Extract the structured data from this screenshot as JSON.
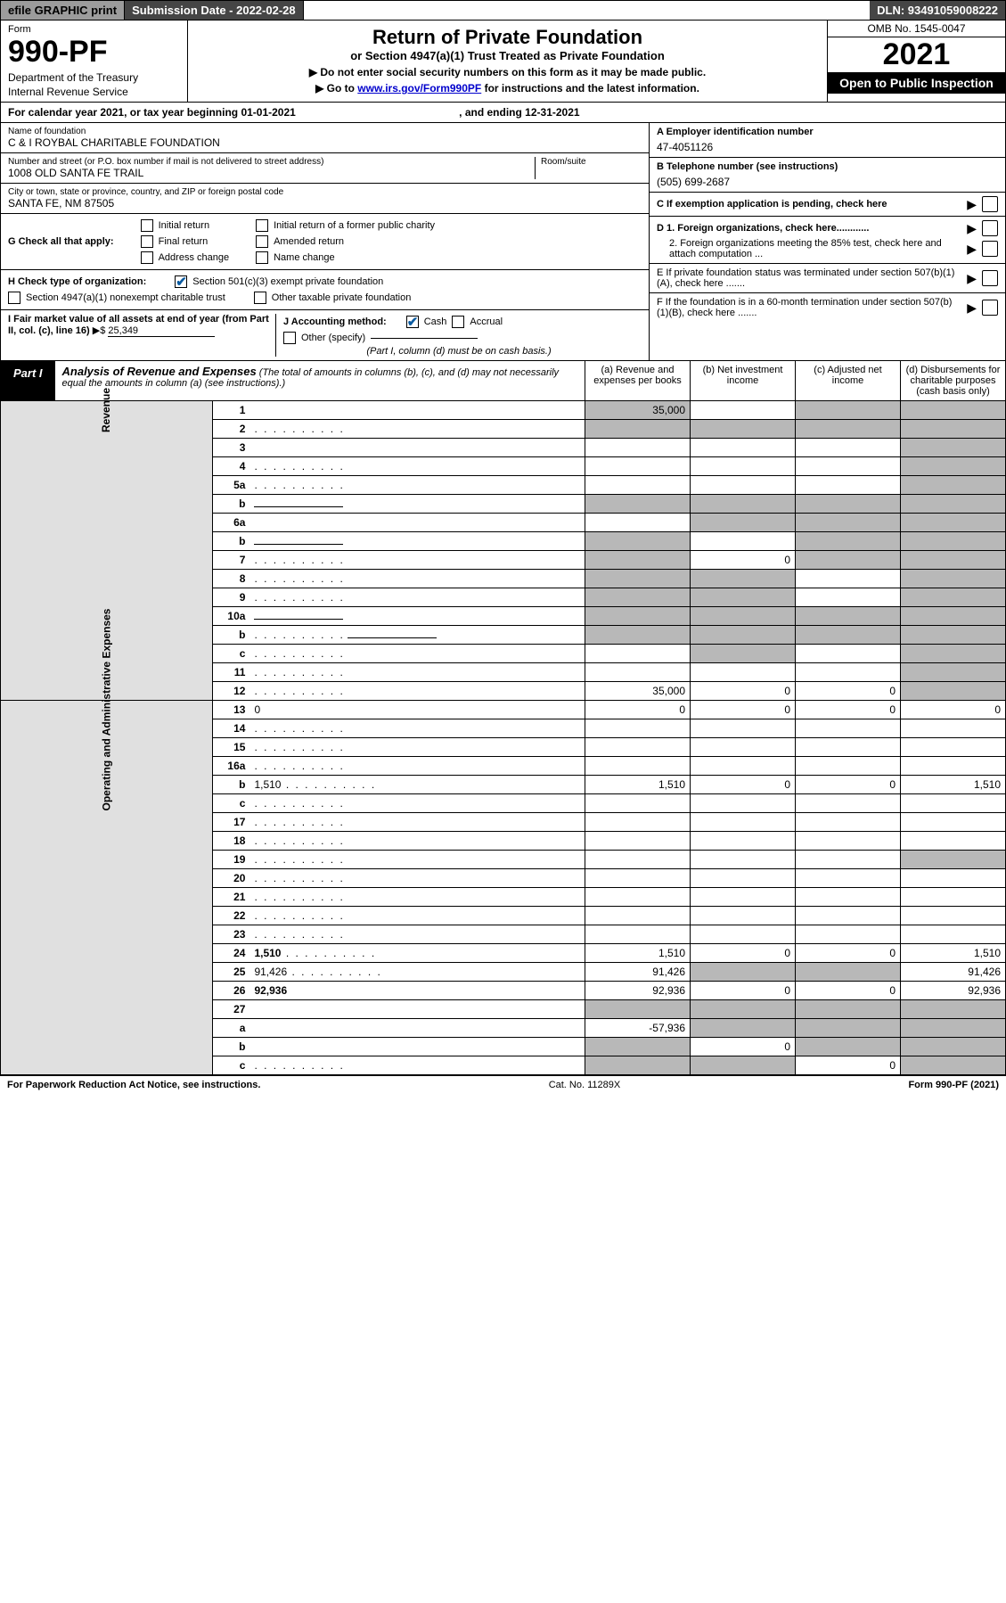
{
  "topbar": {
    "efile": "efile GRAPHIC print",
    "subdate_label": "Submission Date - ",
    "subdate_value": "2022-02-28",
    "dln": "DLN: 93491059008222"
  },
  "header": {
    "form_label": "Form",
    "form_num": "990-PF",
    "dept": "Department of the Treasury",
    "irs": "Internal Revenue Service",
    "title": "Return of Private Foundation",
    "subtitle": "or Section 4947(a)(1) Trust Treated as Private Foundation",
    "inst1": "▶ Do not enter social security numbers on this form as it may be made public.",
    "inst2_pre": "▶ Go to ",
    "inst2_link": "www.irs.gov/Form990PF",
    "inst2_post": " for instructions and the latest information.",
    "omb": "OMB No. 1545-0047",
    "year": "2021",
    "open": "Open to Public Inspection"
  },
  "calyear": "For calendar year 2021, or tax year beginning 01-01-2021",
  "calyear_end": ", and ending 12-31-2021",
  "foundation": {
    "name_label": "Name of foundation",
    "name": "C & I ROYBAL CHARITABLE FOUNDATION",
    "addr_label": "Number and street (or P.O. box number if mail is not delivered to street address)",
    "addr": "1008 OLD SANTA FE TRAIL",
    "room_label": "Room/suite",
    "city_label": "City or town, state or province, country, and ZIP or foreign postal code",
    "city": "SANTA FE, NM  87505"
  },
  "right_info": {
    "a_label": "A Employer identification number",
    "a_val": "47-4051126",
    "b_label": "B Telephone number (see instructions)",
    "b_val": "(505) 699-2687",
    "c_label": "C If exemption application is pending, check here",
    "d1": "D 1. Foreign organizations, check here............",
    "d2": "2. Foreign organizations meeting the 85% test, check here and attach computation ...",
    "e": "E  If private foundation status was terminated under section 507(b)(1)(A), check here .......",
    "f": "F  If the foundation is in a 60-month termination under section 507(b)(1)(B), check here .......",
    "arrow": "▶"
  },
  "g": {
    "label": "G Check all that apply:",
    "opts": [
      "Initial return",
      "Final return",
      "Address change",
      "Initial return of a former public charity",
      "Amended return",
      "Name change"
    ]
  },
  "h": {
    "label": "H Check type of organization:",
    "o1": "Section 501(c)(3) exempt private foundation",
    "o2": "Section 4947(a)(1) nonexempt charitable trust",
    "o3": "Other taxable private foundation"
  },
  "i": {
    "label": "I Fair market value of all assets at end of year (from Part II, col. (c), line 16)",
    "val": "25,349",
    "arrow": "▶$"
  },
  "j": {
    "label": "J Accounting method:",
    "cash": "Cash",
    "accrual": "Accrual",
    "other": "Other (specify)",
    "note": "(Part I, column (d) must be on cash basis.)"
  },
  "part1_title": "Analysis of Revenue and Expenses",
  "part1_note": "(The total of amounts in columns (b), (c), and (d) may not necessarily equal the amounts in column (a) (see instructions).)",
  "cols": {
    "a": "(a)  Revenue and expenses per books",
    "b": "(b)  Net investment income",
    "c": "(c)  Adjusted net income",
    "d": "(d)  Disbursements for charitable purposes (cash basis only)"
  },
  "sides": {
    "rev": "Revenue",
    "exp": "Operating and Administrative Expenses"
  },
  "rows": [
    {
      "n": "1",
      "d": "",
      "a": "35,000",
      "b": "",
      "c": "",
      "sa": true,
      "sc": true,
      "sd": true
    },
    {
      "n": "2",
      "d": "",
      "a": "",
      "b": "",
      "c": "",
      "sa": true,
      "sb": true,
      "sc": true,
      "sd": true,
      "dots": true,
      "bold_not": true
    },
    {
      "n": "3",
      "d": "",
      "a": "",
      "b": "",
      "c": "",
      "sd": true
    },
    {
      "n": "4",
      "d": "",
      "a": "",
      "b": "",
      "c": "",
      "sd": true,
      "dots": true
    },
    {
      "n": "5a",
      "d": "",
      "a": "",
      "b": "",
      "c": "",
      "sd": true,
      "dots": true
    },
    {
      "n": "b",
      "d": "",
      "a": "",
      "b": "",
      "c": "",
      "sa": true,
      "sb": true,
      "sc": true,
      "sd": true,
      "inline": true
    },
    {
      "n": "6a",
      "d": "",
      "a": "",
      "b": "",
      "c": "",
      "sb": true,
      "sc": true,
      "sd": true
    },
    {
      "n": "b",
      "d": "",
      "a": "",
      "b": "",
      "c": "",
      "sa": true,
      "sc": true,
      "sd": true,
      "inline": true
    },
    {
      "n": "7",
      "d": "",
      "a": "",
      "b": "0",
      "c": "",
      "sa": true,
      "sc": true,
      "sd": true,
      "dots": true
    },
    {
      "n": "8",
      "d": "",
      "a": "",
      "b": "",
      "c": "",
      "sa": true,
      "sb": true,
      "sd": true,
      "dots": true
    },
    {
      "n": "9",
      "d": "",
      "a": "",
      "b": "",
      "c": "",
      "sa": true,
      "sb": true,
      "sd": true,
      "dots": true
    },
    {
      "n": "10a",
      "d": "",
      "a": "",
      "b": "",
      "c": "",
      "sa": true,
      "sb": true,
      "sc": true,
      "sd": true,
      "inline": true
    },
    {
      "n": "b",
      "d": "",
      "a": "",
      "b": "",
      "c": "",
      "sa": true,
      "sb": true,
      "sc": true,
      "sd": true,
      "dots": true,
      "inline": true
    },
    {
      "n": "c",
      "d": "",
      "a": "",
      "b": "",
      "c": "",
      "sb": true,
      "sd": true,
      "dots": true
    },
    {
      "n": "11",
      "d": "",
      "a": "",
      "b": "",
      "c": "",
      "sd": true,
      "dots": true
    },
    {
      "n": "12",
      "d": "",
      "a": "35,000",
      "b": "0",
      "c": "0",
      "sd": true,
      "bold": true,
      "dots": true
    }
  ],
  "exp_rows": [
    {
      "n": "13",
      "d": "0",
      "a": "0",
      "b": "0",
      "c": "0"
    },
    {
      "n": "14",
      "d": "",
      "a": "",
      "b": "",
      "c": "",
      "dots": true
    },
    {
      "n": "15",
      "d": "",
      "a": "",
      "b": "",
      "c": "",
      "dots": true
    },
    {
      "n": "16a",
      "d": "",
      "a": "",
      "b": "",
      "c": "",
      "dots": true
    },
    {
      "n": "b",
      "d": "1,510",
      "a": "1,510",
      "b": "0",
      "c": "0",
      "dots": true
    },
    {
      "n": "c",
      "d": "",
      "a": "",
      "b": "",
      "c": "",
      "dots": true
    },
    {
      "n": "17",
      "d": "",
      "a": "",
      "b": "",
      "c": "",
      "dots": true
    },
    {
      "n": "18",
      "d": "",
      "a": "",
      "b": "",
      "c": "",
      "dots": true
    },
    {
      "n": "19",
      "d": "",
      "a": "",
      "b": "",
      "c": "",
      "sd": true,
      "dots": true
    },
    {
      "n": "20",
      "d": "",
      "a": "",
      "b": "",
      "c": "",
      "dots": true
    },
    {
      "n": "21",
      "d": "",
      "a": "",
      "b": "",
      "c": "",
      "dots": true
    },
    {
      "n": "22",
      "d": "",
      "a": "",
      "b": "",
      "c": "",
      "dots": true
    },
    {
      "n": "23",
      "d": "",
      "a": "",
      "b": "",
      "c": "",
      "dots": true
    },
    {
      "n": "24",
      "d": "1,510",
      "a": "1,510",
      "b": "0",
      "c": "0",
      "bold": true,
      "dots": true
    },
    {
      "n": "25",
      "d": "91,426",
      "a": "91,426",
      "b": "",
      "c": "",
      "sb": true,
      "sc": true,
      "dots": true
    },
    {
      "n": "26",
      "d": "92,936",
      "a": "92,936",
      "b": "0",
      "c": "0",
      "bold": true
    }
  ],
  "bottom_rows": [
    {
      "n": "27",
      "d": "",
      "a": "",
      "b": "",
      "c": "",
      "sa": true,
      "sb": true,
      "sc": true,
      "sd": true
    },
    {
      "n": "a",
      "d": "",
      "a": "-57,936",
      "b": "",
      "c": "",
      "sb": true,
      "sc": true,
      "sd": true,
      "bold": true
    },
    {
      "n": "b",
      "d": "",
      "a": "",
      "b": "0",
      "c": "",
      "sa": true,
      "sc": true,
      "sd": true,
      "bold": true
    },
    {
      "n": "c",
      "d": "",
      "a": "",
      "b": "",
      "c": "0",
      "sa": true,
      "sb": true,
      "sd": true,
      "bold": true,
      "dots": true
    }
  ],
  "footer": {
    "left": "For Paperwork Reduction Act Notice, see instructions.",
    "mid": "Cat. No. 11289X",
    "right": "Form 990-PF (2021)"
  }
}
